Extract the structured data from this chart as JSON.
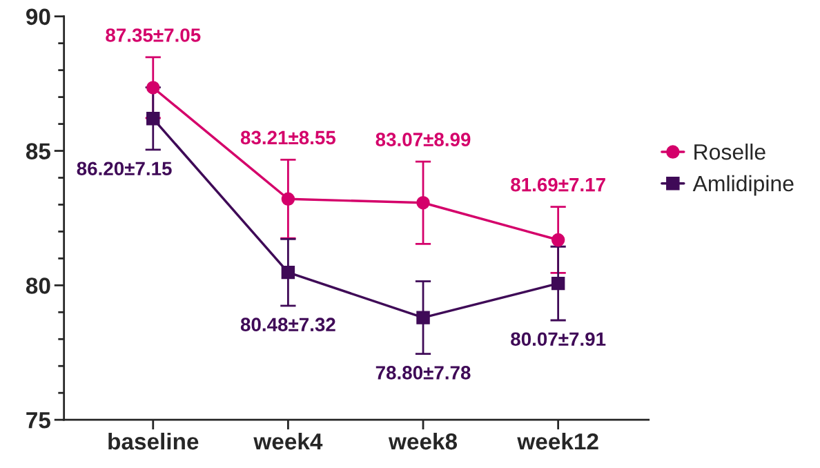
{
  "chart_data": {
    "type": "line",
    "categories": [
      "baseline",
      "week4",
      "week8",
      "week12"
    ],
    "series": [
      {
        "name": "Roselle",
        "color": "#d4006a",
        "marker": "circle",
        "values": [
          87.35,
          83.21,
          83.07,
          81.69
        ],
        "errors": [
          1.13,
          1.46,
          1.53,
          1.23
        ],
        "value_labels": [
          "87.35±7.05",
          "83.21±8.55",
          "83.07±8.99",
          "81.69±7.17"
        ]
      },
      {
        "name": "Amlidipine",
        "color": "#3f0a57",
        "marker": "square",
        "values": [
          86.2,
          80.48,
          78.8,
          80.07
        ],
        "errors": [
          1.16,
          1.24,
          1.35,
          1.37
        ],
        "value_labels": [
          "86.20±7.15",
          "80.48±7.32",
          "78.80±7.78",
          "80.07±7.91"
        ]
      }
    ],
    "ylim": [
      75,
      90
    ],
    "yticks": [
      75,
      80,
      85,
      90
    ],
    "grid": false,
    "legend": "right",
    "line_style": "solid"
  }
}
